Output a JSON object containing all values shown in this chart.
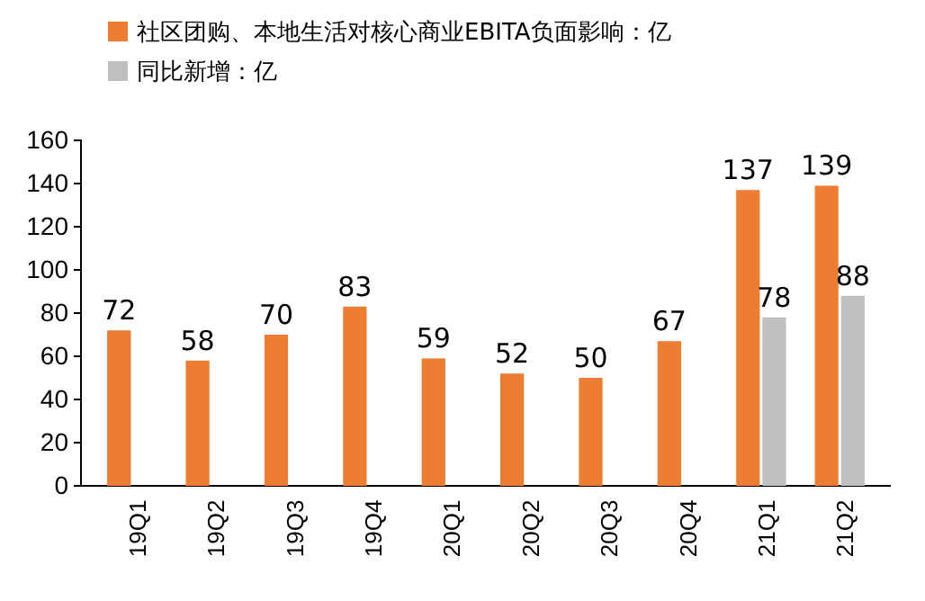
{
  "chart_data": {
    "type": "bar",
    "categories": [
      "19Q1",
      "19Q2",
      "19Q3",
      "19Q4",
      "20Q1",
      "20Q2",
      "20Q3",
      "20Q4",
      "21Q1",
      "21Q2"
    ],
    "series": [
      {
        "name": "社区团购、本地生活对核心商业EBITA负面影响：亿",
        "color": "#ed7d31",
        "values": [
          72,
          58,
          70,
          83,
          59,
          52,
          50,
          67,
          137,
          139
        ]
      },
      {
        "name": "同比新增：亿",
        "color": "#bfbfbf",
        "values": [
          null,
          null,
          null,
          null,
          null,
          null,
          null,
          null,
          78,
          88
        ]
      }
    ],
    "ylim": [
      0,
      160
    ],
    "yticks": [
      0,
      20,
      40,
      60,
      80,
      100,
      120,
      140,
      160
    ],
    "grid": false,
    "legend": "top left",
    "data_labels": true
  }
}
